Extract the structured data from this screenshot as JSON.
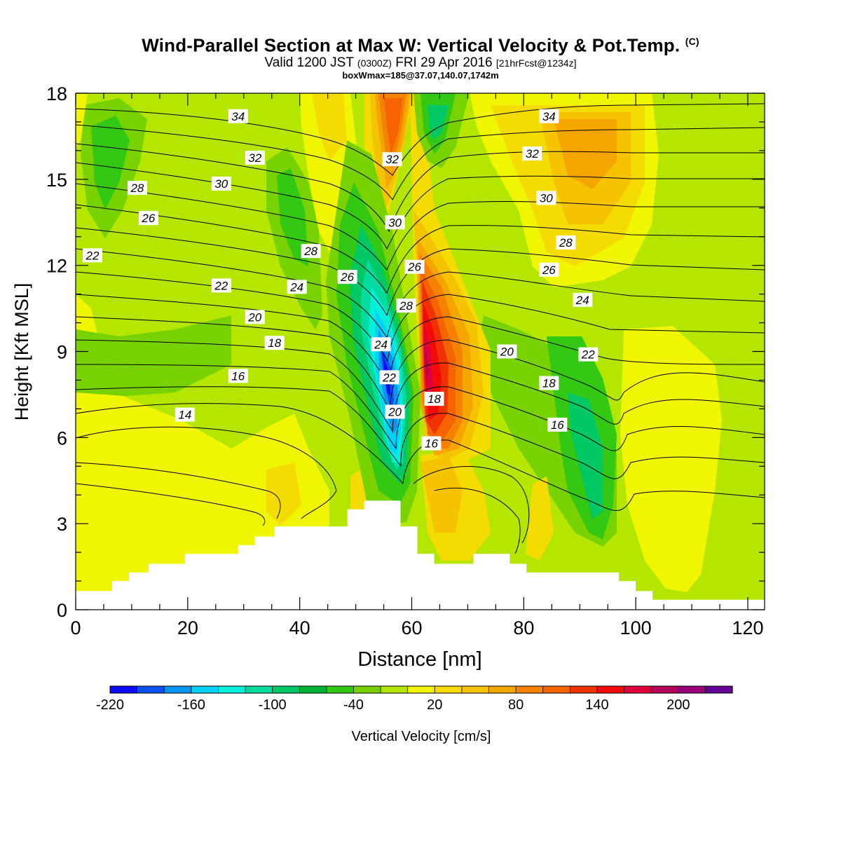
{
  "header": {
    "title": "Wind-Parallel Section at Max W: Vertical Velocity & Pot.Temp.",
    "copyright": "(C)",
    "valid_main": "Valid 1200 JST",
    "valid_utc": "(0300Z)",
    "valid_date": "FRI 29 Apr 2016",
    "forecast": "[21hrFcst@1234z]",
    "box_info": "boxWmax=185@37.07,140.07,1742m"
  },
  "chart_data": {
    "type": "heatmap",
    "xlabel": "Distance [nm]",
    "ylabel": "Height [Kft MSL]",
    "xlim": [
      0,
      123
    ],
    "ylim": [
      0,
      18
    ],
    "x_ticks": [
      "0",
      "20",
      "40",
      "60",
      "80",
      "100",
      "120"
    ],
    "y_ticks": [
      "0",
      "3",
      "6",
      "9",
      "12",
      "15",
      "18"
    ],
    "colorbar": {
      "label": "Vertical Velocity [cm/s]",
      "tick_labels": [
        "-220",
        "-160",
        "-100",
        "-40",
        "20",
        "80",
        "140",
        "200"
      ],
      "colors": [
        "#0a0af5",
        "#0a50f5",
        "#0a96f0",
        "#00d2f5",
        "#00f0dc",
        "#00dca0",
        "#00c864",
        "#00b432",
        "#32c814",
        "#78d200",
        "#b4e600",
        "#f0f500",
        "#f5dc00",
        "#f5c300",
        "#f5a500",
        "#f58200",
        "#f56400",
        "#f03200",
        "#f50a0a",
        "#e1003c",
        "#b4005a",
        "#960078",
        "#640096"
      ]
    },
    "terrain_profile": [
      [
        0,
        0.65
      ],
      [
        6.5,
        0.65
      ],
      [
        6.5,
        1.0
      ],
      [
        9.5,
        1.0
      ],
      [
        9.5,
        1.3
      ],
      [
        13,
        1.3
      ],
      [
        13,
        1.6
      ],
      [
        19.5,
        1.6
      ],
      [
        19.5,
        1.95
      ],
      [
        29,
        1.95
      ],
      [
        29,
        2.25
      ],
      [
        32,
        2.25
      ],
      [
        32,
        2.55
      ],
      [
        35.5,
        2.55
      ],
      [
        35.5,
        2.9
      ],
      [
        48.5,
        2.9
      ],
      [
        48.5,
        3.5
      ],
      [
        51.5,
        3.5
      ],
      [
        51.5,
        3.8
      ],
      [
        58,
        3.8
      ],
      [
        58,
        2.9
      ],
      [
        61,
        2.9
      ],
      [
        61,
        1.95
      ],
      [
        64,
        1.95
      ],
      [
        64,
        1.6
      ],
      [
        71,
        1.6
      ],
      [
        71,
        1.95
      ],
      [
        77.5,
        1.95
      ],
      [
        77.5,
        1.6
      ],
      [
        80.5,
        1.6
      ],
      [
        80.5,
        1.3
      ],
      [
        97,
        1.3
      ],
      [
        97,
        1.0
      ],
      [
        100,
        1.0
      ],
      [
        100,
        0.65
      ],
      [
        103,
        0.65
      ],
      [
        103,
        0.35
      ],
      [
        123,
        0.35
      ]
    ],
    "contour_labels": [
      {
        "text": "34",
        "x": 29,
        "y": 17.2
      },
      {
        "text": "34",
        "x": 84.5,
        "y": 17.2
      },
      {
        "text": "32",
        "x": 32,
        "y": 15.75
      },
      {
        "text": "32",
        "x": 56.5,
        "y": 15.7
      },
      {
        "text": "32",
        "x": 81.5,
        "y": 15.9
      },
      {
        "text": "30",
        "x": 26,
        "y": 14.85
      },
      {
        "text": "30",
        "x": 57,
        "y": 13.5
      },
      {
        "text": "30",
        "x": 84,
        "y": 14.35
      },
      {
        "text": "28",
        "x": 11,
        "y": 14.7
      },
      {
        "text": "28",
        "x": 42,
        "y": 12.5
      },
      {
        "text": "28",
        "x": 87.5,
        "y": 12.8
      },
      {
        "text": "28",
        "x": 59,
        "y": 10.6
      },
      {
        "text": "26",
        "x": 13,
        "y": 13.65
      },
      {
        "text": "26",
        "x": 48.5,
        "y": 11.6
      },
      {
        "text": "26",
        "x": 84.5,
        "y": 11.85
      },
      {
        "text": "26",
        "x": 60.5,
        "y": 11.95
      },
      {
        "text": "24",
        "x": 39.5,
        "y": 11.25
      },
      {
        "text": "24",
        "x": 90.5,
        "y": 10.8
      },
      {
        "text": "24",
        "x": 54.5,
        "y": 9.25
      },
      {
        "text": "22",
        "x": 3,
        "y": 12.35
      },
      {
        "text": "22",
        "x": 26,
        "y": 11.3
      },
      {
        "text": "22",
        "x": 91.5,
        "y": 8.9
      },
      {
        "text": "22",
        "x": 56,
        "y": 8.1
      },
      {
        "text": "20",
        "x": 32,
        "y": 10.2
      },
      {
        "text": "20",
        "x": 77,
        "y": 9.0
      },
      {
        "text": "20",
        "x": 57,
        "y": 6.9
      },
      {
        "text": "18",
        "x": 35.5,
        "y": 9.3
      },
      {
        "text": "18",
        "x": 84.5,
        "y": 7.9
      },
      {
        "text": "18",
        "x": 64,
        "y": 7.35
      },
      {
        "text": "16",
        "x": 29,
        "y": 8.15
      },
      {
        "text": "16",
        "x": 86,
        "y": 6.45
      },
      {
        "text": "16",
        "x": 63.5,
        "y": 5.8
      },
      {
        "text": "14",
        "x": 19.5,
        "y": 6.8
      }
    ]
  }
}
